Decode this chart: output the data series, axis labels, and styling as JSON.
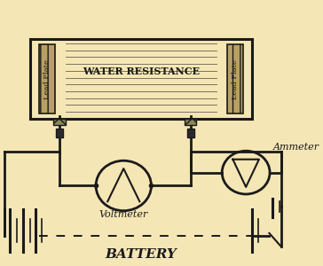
{
  "bg_color": "#f5e6b5",
  "line_color": "#1a1a1a",
  "title": "BATTERY",
  "voltmeter_label": "Voltmeter",
  "ammeter_label": "Ammeter",
  "water_label": "WATER RESISTANCE",
  "lead_left": "Lead Plate",
  "lead_right": "Lead Plate",
  "title_fontsize": 11,
  "meter_label_fontsize": 8,
  "water_label_fontsize": 8,
  "lead_fontsize": 6,
  "figw": 3.64,
  "figh": 3.0
}
